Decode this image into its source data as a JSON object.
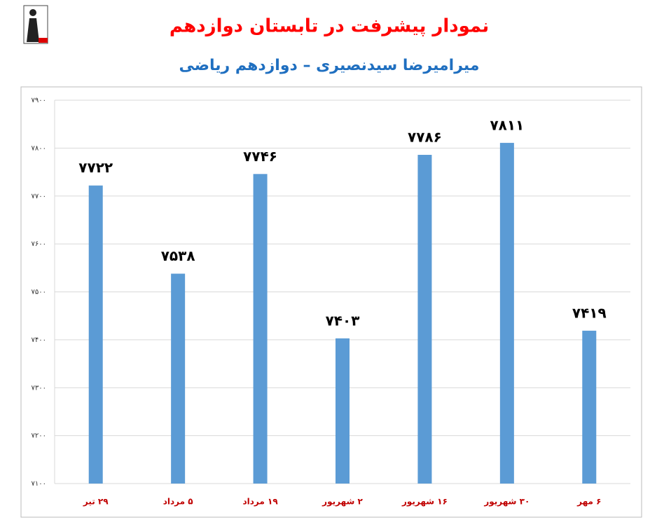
{
  "chart_data": {
    "type": "bar",
    "title": "نمودار پیشرفت در تابستان دوازدهم",
    "subtitle": "میرامیرضا سیدنصیری – دوازدهم ریاضی",
    "categories": [
      "۲۹ تیر",
      "۵ مرداد",
      "۱۹ مرداد",
      "۲ شهریور",
      "۱۶ شهریور",
      "۳۰ شهریور",
      "۶ مهر"
    ],
    "values": [
      7722,
      7538,
      7746,
      7403,
      7786,
      7811,
      7419
    ],
    "value_labels": [
      "۷۷۲۲",
      "۷۵۳۸",
      "۷۷۴۶",
      "۷۴۰۳",
      "۷۷۸۶",
      "۷۸۱۱",
      "۷۴۱۹"
    ],
    "color": "#5b9bd5",
    "ylim": [
      7100,
      7900
    ],
    "yticks": [
      {
        "value": 7100,
        "label": "۷۱۰۰"
      },
      {
        "value": 7200,
        "label": "۷۲۰۰"
      },
      {
        "value": 7300,
        "label": "۷۳۰۰"
      },
      {
        "value": 7400,
        "label": "۷۴۰۰"
      },
      {
        "value": 7500,
        "label": "۷۵۰۰"
      },
      {
        "value": 7600,
        "label": "۷۶۰۰"
      },
      {
        "value": 7700,
        "label": "۷۷۰۰"
      },
      {
        "value": 7800,
        "label": "۷۸۰۰"
      },
      {
        "value": 7900,
        "label": "۷۹۰۰"
      }
    ],
    "grid": true
  }
}
